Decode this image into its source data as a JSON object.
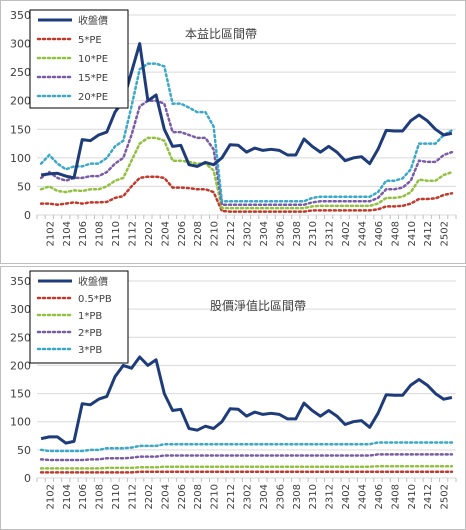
{
  "chart_data": [
    {
      "type": "line",
      "title": "本益比區間帶",
      "ylim": [
        0,
        350
      ],
      "yticks": [
        0,
        50,
        100,
        150,
        200,
        250,
        300,
        350
      ],
      "x": [
        "2101",
        "2102",
        "2103",
        "2104",
        "2105",
        "2106",
        "2107",
        "2108",
        "2109",
        "2110",
        "2111",
        "2112",
        "2201",
        "2202",
        "2203",
        "2204",
        "2205",
        "2206",
        "2207",
        "2208",
        "2209",
        "2210",
        "2211",
        "2212",
        "2301",
        "2302",
        "2303",
        "2304",
        "2305",
        "2306",
        "2307",
        "2308",
        "2309",
        "2310",
        "2311",
        "2312",
        "2401",
        "2402",
        "2403",
        "2404",
        "2405",
        "2406",
        "2407",
        "2408",
        "2409",
        "2410",
        "2411",
        "2412",
        "2501",
        "2502",
        "2503"
      ],
      "xticks": [
        "2102",
        "2104",
        "2106",
        "2108",
        "2110",
        "2112",
        "2202",
        "2204",
        "2206",
        "2208",
        "2210",
        "2212",
        "2302",
        "2304",
        "2306",
        "2308",
        "2310",
        "2312",
        "2402",
        "2404",
        "2406",
        "2408",
        "2410",
        "2412",
        "2502"
      ],
      "legend_placement": "top-left",
      "grid": true,
      "series": [
        {
          "name": "收盤價",
          "color": "#1f3c7a",
          "style": "solid",
          "values": [
            70,
            72,
            73,
            68,
            65,
            132,
            130,
            140,
            145,
            180,
            200,
            250,
            300,
            200,
            210,
            150,
            120,
            122,
            88,
            85,
            92,
            88,
            100,
            123,
            122,
            110,
            117,
            113,
            115,
            113,
            105,
            105,
            133,
            120,
            110,
            120,
            110,
            95,
            100,
            102,
            90,
            115,
            148,
            147,
            147,
            165,
            175,
            165,
            150,
            140,
            143
          ]
        },
        {
          "name": "5*PE",
          "color": "#c0392b",
          "style": "dotted",
          "values": [
            20,
            20,
            18,
            20,
            22,
            20,
            22,
            22,
            23,
            30,
            33,
            50,
            65,
            67,
            67,
            65,
            48,
            48,
            47,
            45,
            45,
            40,
            7,
            6,
            6,
            6,
            6,
            6,
            6,
            6,
            6,
            6,
            6,
            8,
            8,
            8,
            8,
            8,
            8,
            8,
            8,
            10,
            15,
            15,
            16,
            20,
            28,
            28,
            29,
            35,
            38
          ]
        },
        {
          "name": "10*PE",
          "color": "#92c13f",
          "style": "dotted",
          "values": [
            45,
            50,
            42,
            40,
            43,
            42,
            45,
            45,
            50,
            60,
            65,
            95,
            125,
            135,
            135,
            130,
            95,
            95,
            93,
            90,
            90,
            78,
            12,
            12,
            12,
            12,
            12,
            12,
            12,
            12,
            12,
            12,
            12,
            15,
            16,
            16,
            16,
            16,
            16,
            16,
            16,
            20,
            30,
            30,
            32,
            40,
            62,
            60,
            60,
            70,
            75
          ]
        },
        {
          "name": "15*PE",
          "color": "#7a5ba6",
          "style": "dotted",
          "values": [
            65,
            75,
            65,
            60,
            65,
            65,
            68,
            68,
            75,
            90,
            100,
            140,
            190,
            200,
            200,
            195,
            145,
            145,
            140,
            135,
            135,
            115,
            18,
            18,
            18,
            18,
            18,
            18,
            18,
            18,
            18,
            18,
            18,
            22,
            24,
            24,
            24,
            24,
            24,
            24,
            24,
            30,
            45,
            45,
            48,
            60,
            95,
            93,
            93,
            105,
            110
          ]
        },
        {
          "name": "20*PE",
          "color": "#3aa8c9",
          "style": "dotted",
          "values": [
            90,
            105,
            90,
            80,
            85,
            85,
            90,
            90,
            100,
            120,
            130,
            190,
            255,
            265,
            265,
            260,
            195,
            195,
            188,
            180,
            180,
            155,
            24,
            24,
            24,
            24,
            24,
            24,
            24,
            24,
            24,
            24,
            24,
            30,
            32,
            32,
            32,
            32,
            32,
            32,
            32,
            40,
            60,
            60,
            64,
            80,
            125,
            125,
            125,
            140,
            148
          ]
        }
      ]
    },
    {
      "type": "line",
      "title": "股價淨值比區間帶",
      "ylim": [
        0,
        350
      ],
      "yticks": [
        0,
        50,
        100,
        150,
        200,
        250,
        300,
        350
      ],
      "x": [
        "2101",
        "2102",
        "2103",
        "2104",
        "2105",
        "2106",
        "2107",
        "2108",
        "2109",
        "2110",
        "2111",
        "2112",
        "2201",
        "2202",
        "2203",
        "2204",
        "2205",
        "2206",
        "2207",
        "2208",
        "2209",
        "2210",
        "2211",
        "2212",
        "2301",
        "2302",
        "2303",
        "2304",
        "2305",
        "2306",
        "2307",
        "2308",
        "2309",
        "2310",
        "2311",
        "2312",
        "2401",
        "2402",
        "2403",
        "2404",
        "2405",
        "2406",
        "2407",
        "2408",
        "2409",
        "2410",
        "2411",
        "2412",
        "2501",
        "2502",
        "2503"
      ],
      "xticks": [
        "2102",
        "2104",
        "2106",
        "2108",
        "2110",
        "2112",
        "2202",
        "2204",
        "2206",
        "2208",
        "2210",
        "2212",
        "2302",
        "2304",
        "2306",
        "2308",
        "2310",
        "2312",
        "2402",
        "2404",
        "2406",
        "2408",
        "2410",
        "2412",
        "2502"
      ],
      "legend_placement": "top-left",
      "grid": true,
      "series": [
        {
          "name": "收盤價",
          "color": "#1f3c7a",
          "style": "solid",
          "values": [
            70,
            73,
            73,
            62,
            65,
            132,
            130,
            140,
            145,
            180,
            200,
            195,
            215,
            200,
            210,
            150,
            120,
            122,
            88,
            85,
            92,
            88,
            100,
            123,
            122,
            110,
            117,
            113,
            115,
            113,
            105,
            105,
            133,
            120,
            110,
            120,
            110,
            95,
            100,
            102,
            90,
            115,
            148,
            147,
            147,
            165,
            175,
            165,
            150,
            140,
            143
          ]
        },
        {
          "name": "0.5*PB",
          "color": "#c0392b",
          "style": "dotted",
          "values": [
            10,
            10,
            10,
            10,
            10,
            10,
            10,
            10,
            10,
            10,
            10,
            10,
            11,
            11,
            11,
            11,
            11,
            11,
            11,
            11,
            11,
            11,
            11,
            11,
            11,
            11,
            11,
            11,
            11,
            11,
            11,
            11,
            11,
            11,
            11,
            11,
            11,
            11,
            11,
            11,
            11,
            11,
            11,
            11,
            11,
            11,
            11,
            11,
            11,
            11,
            11
          ]
        },
        {
          "name": "1*PB",
          "color": "#92c13f",
          "style": "dotted",
          "values": [
            17,
            17,
            17,
            17,
            17,
            17,
            17,
            17,
            18,
            18,
            18,
            18,
            19,
            19,
            19,
            20,
            20,
            20,
            20,
            20,
            20,
            20,
            20,
            20,
            20,
            20,
            20,
            20,
            20,
            20,
            20,
            20,
            20,
            20,
            20,
            20,
            20,
            20,
            20,
            20,
            20,
            21,
            21,
            21,
            21,
            21,
            21,
            21,
            21,
            21,
            21
          ]
        },
        {
          "name": "2*PB",
          "color": "#7a5ba6",
          "style": "dotted",
          "values": [
            33,
            32,
            32,
            32,
            32,
            32,
            33,
            33,
            35,
            35,
            35,
            36,
            38,
            38,
            38,
            40,
            40,
            40,
            40,
            40,
            40,
            40,
            40,
            40,
            40,
            40,
            40,
            40,
            40,
            40,
            40,
            40,
            40,
            40,
            40,
            40,
            40,
            40,
            40,
            40,
            40,
            42,
            42,
            42,
            42,
            42,
            42,
            42,
            42,
            42,
            42
          ]
        },
        {
          "name": "3*PB",
          "color": "#3aa8c9",
          "style": "dotted",
          "values": [
            50,
            48,
            48,
            48,
            48,
            48,
            50,
            50,
            53,
            53,
            53,
            54,
            57,
            57,
            57,
            60,
            60,
            60,
            60,
            60,
            60,
            60,
            60,
            60,
            60,
            60,
            60,
            60,
            60,
            60,
            60,
            60,
            60,
            60,
            60,
            60,
            60,
            60,
            60,
            60,
            60,
            63,
            63,
            63,
            63,
            63,
            63,
            63,
            63,
            63,
            63
          ]
        }
      ]
    }
  ]
}
